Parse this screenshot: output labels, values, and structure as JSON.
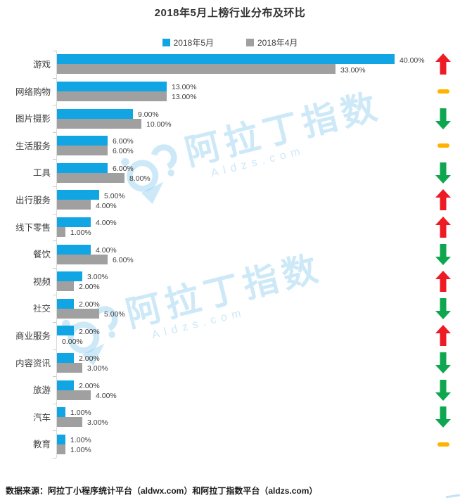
{
  "title": "2018年5月上榜行业分布及环比",
  "legend": {
    "may": "2018年5月",
    "apr": "2018年4月"
  },
  "footer": "数据来源：阿拉丁小程序统计平台（aldwx.com）和阿拉丁指数平台（aldzs.com）",
  "watermark": {
    "cn": "阿拉丁指数",
    "en": "Aldzs.com"
  },
  "colors": {
    "may_bar": "#12A5E3",
    "apr_bar": "#A0A0A0",
    "up_arrow": "#ED1C24",
    "down_arrow": "#0EA64E",
    "flat_dash": "#FFB300",
    "watermark": "rgba(70,172,230,0.27)"
  },
  "rows": [
    {
      "label": "游戏",
      "may": 40,
      "apr": 33,
      "may_text": "40.00%",
      "apr_text": "33.00%",
      "trend": "up"
    },
    {
      "label": "网络购物",
      "may": 13,
      "apr": 13,
      "may_text": "13.00%",
      "apr_text": "13.00%",
      "trend": "flat"
    },
    {
      "label": "图片摄影",
      "may": 9,
      "apr": 10,
      "may_text": "9.00%",
      "apr_text": "10.00%",
      "trend": "down"
    },
    {
      "label": "生活服务",
      "may": 6,
      "apr": 6,
      "may_text": "6.00%",
      "apr_text": "6.00%",
      "trend": "flat"
    },
    {
      "label": "工具",
      "may": 6,
      "apr": 8,
      "may_text": "6.00%",
      "apr_text": "8.00%",
      "trend": "down"
    },
    {
      "label": "出行服务",
      "may": 5,
      "apr": 4,
      "may_text": "5.00%",
      "apr_text": "4.00%",
      "trend": "up"
    },
    {
      "label": "线下零售",
      "may": 4,
      "apr": 1,
      "may_text": "4.00%",
      "apr_text": "1.00%",
      "trend": "up"
    },
    {
      "label": "餐饮",
      "may": 4,
      "apr": 6,
      "may_text": "4.00%",
      "apr_text": "6.00%",
      "trend": "down"
    },
    {
      "label": "视频",
      "may": 3,
      "apr": 2,
      "may_text": "3.00%",
      "apr_text": "2.00%",
      "trend": "up"
    },
    {
      "label": "社交",
      "may": 2,
      "apr": 5,
      "may_text": "2.00%",
      "apr_text": "5.00%",
      "trend": "down"
    },
    {
      "label": "商业服务",
      "may": 2,
      "apr": 0,
      "may_text": "2.00%",
      "apr_text": "0.00%",
      "trend": "up"
    },
    {
      "label": "内容资讯",
      "may": 2,
      "apr": 3,
      "may_text": "2.00%",
      "apr_text": "3.00%",
      "trend": "down"
    },
    {
      "label": "旅游",
      "may": 2,
      "apr": 4,
      "may_text": "2.00%",
      "apr_text": "4.00%",
      "trend": "down"
    },
    {
      "label": "汽车",
      "may": 1,
      "apr": 3,
      "may_text": "1.00%",
      "apr_text": "3.00%",
      "trend": "down"
    },
    {
      "label": "教育",
      "may": 1,
      "apr": 1,
      "may_text": "1.00%",
      "apr_text": "1.00%",
      "trend": "flat"
    }
  ],
  "chart_data": {
    "type": "bar",
    "orientation": "horizontal",
    "title": "2018年5月上榜行业分布及环比",
    "categories": [
      "游戏",
      "网络购物",
      "图片摄影",
      "生活服务",
      "工具",
      "出行服务",
      "线下零售",
      "餐饮",
      "视频",
      "社交",
      "商业服务",
      "内容资讯",
      "旅游",
      "汽车",
      "教育"
    ],
    "series": [
      {
        "name": "2018年5月",
        "values": [
          40,
          13,
          9,
          6,
          6,
          5,
          4,
          4,
          3,
          2,
          2,
          2,
          2,
          1,
          1
        ]
      },
      {
        "name": "2018年4月",
        "values": [
          33,
          13,
          10,
          6,
          8,
          4,
          1,
          6,
          2,
          5,
          0,
          3,
          4,
          3,
          1
        ]
      }
    ],
    "value_label_format": "0.00%",
    "trend_vs_prev_month": [
      "up",
      "flat",
      "down",
      "flat",
      "down",
      "up",
      "up",
      "down",
      "up",
      "down",
      "up",
      "down",
      "down",
      "down",
      "flat"
    ],
    "xlabel": "",
    "ylabel": "",
    "xlim": [
      0,
      42
    ],
    "grid": false,
    "legend_position": "top",
    "data_source_note": "数据来源：阿拉丁小程序统计平台（aldwx.com）和阿拉丁指数平台（aldzs.com）"
  }
}
